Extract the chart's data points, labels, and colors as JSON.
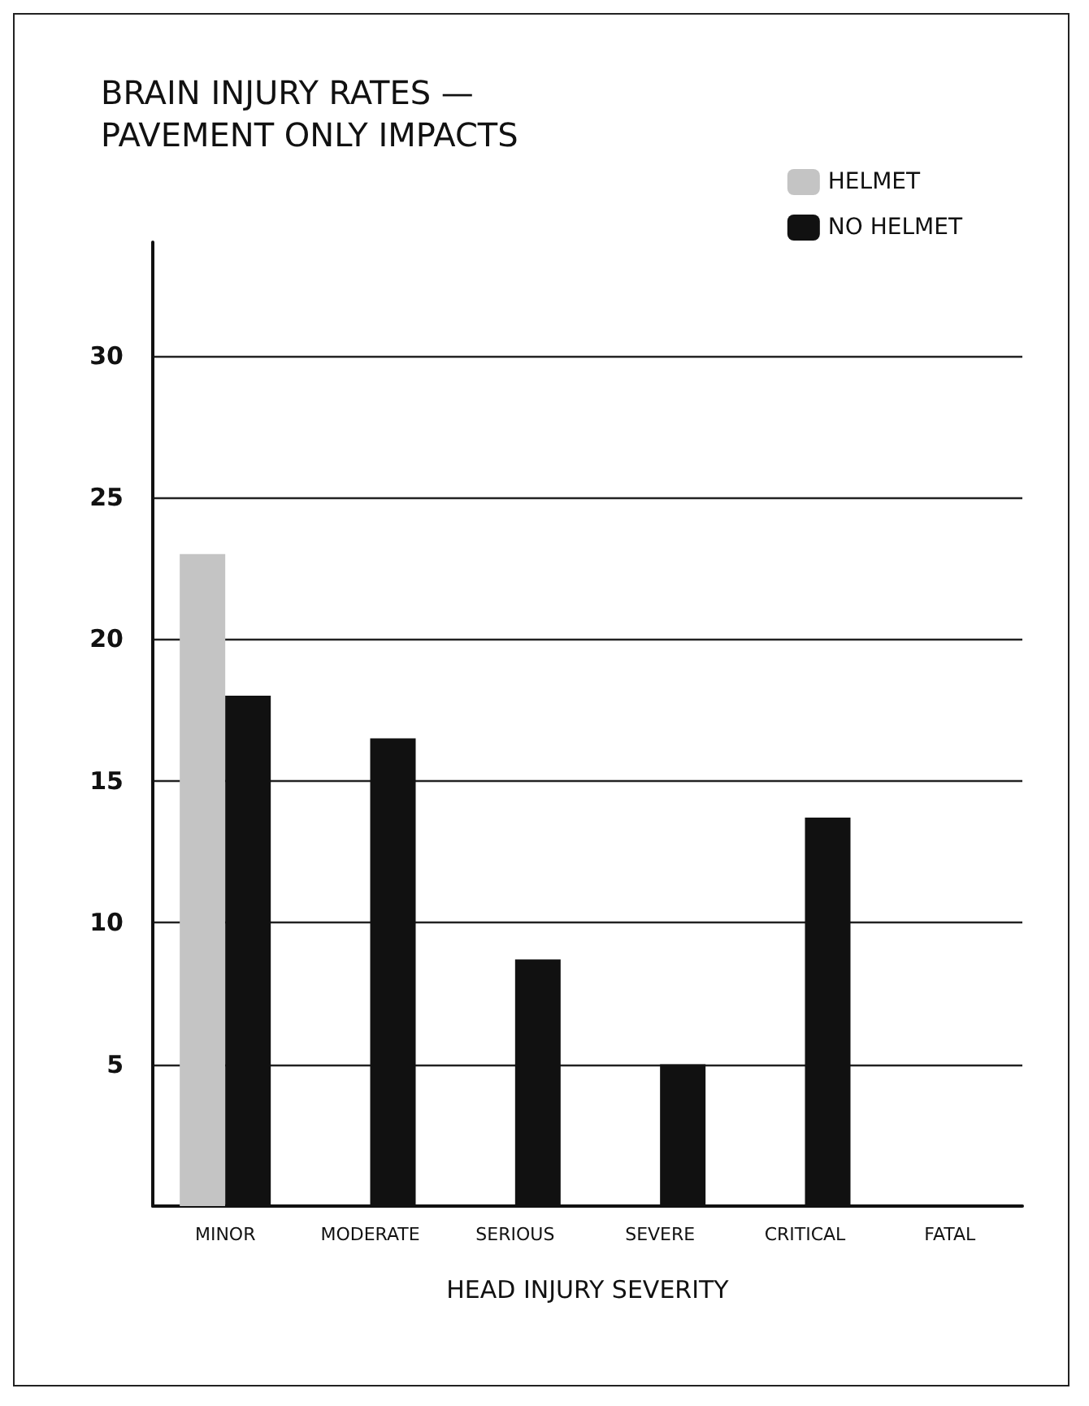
{
  "chart_data": {
    "type": "bar",
    "title": "BRAIN INJURY RATES —\nPAVEMENT ONLY IMPACTS",
    "xlabel": "HEAD INJURY SEVERITY",
    "categories": [
      "MINOR",
      "MODERATE",
      "SERIOUS",
      "SEVERE",
      "CRITICAL",
      "FATAL"
    ],
    "series": [
      {
        "name": "HELMET",
        "color": "#c4c4c4",
        "values": [
          23,
          null,
          null,
          null,
          null,
          null
        ]
      },
      {
        "name": "NO HELMET",
        "color": "#111111",
        "values": [
          18,
          16.5,
          8.7,
          5,
          13.7,
          null
        ]
      }
    ],
    "ylim": [
      0,
      34
    ],
    "yticks": [
      5,
      10,
      15,
      20,
      25,
      30
    ],
    "grid": "y",
    "legend": "top right"
  }
}
